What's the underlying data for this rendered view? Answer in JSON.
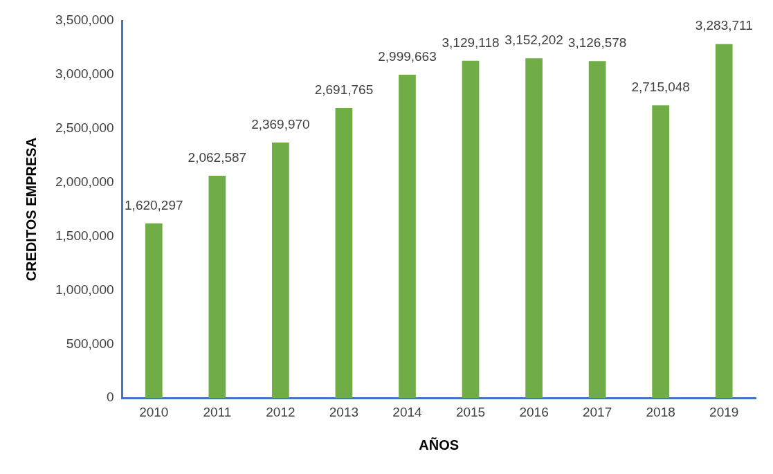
{
  "chart_data": {
    "type": "bar",
    "xlabel": "AÑOS",
    "ylabel": "CREDITOS EMPRESA",
    "categories": [
      "2010",
      "2011",
      "2012",
      "2013",
      "2014",
      "2015",
      "2016",
      "2017",
      "2018",
      "2019"
    ],
    "values": [
      1620297,
      2062587,
      2369970,
      2691765,
      2999663,
      3129118,
      3152202,
      3126578,
      2715048,
      3283711
    ],
    "color": "#70ad47",
    "ylim": [
      0,
      3500000
    ],
    "yticks": [
      {
        "value": 0,
        "label": "0"
      },
      {
        "value": 500000,
        "label": "500,000"
      },
      {
        "value": 1000000,
        "label": "1,000,000"
      },
      {
        "value": 1500000,
        "label": "1,500,000"
      },
      {
        "value": 2000000,
        "label": "2,000,000"
      },
      {
        "value": 2500000,
        "label": "2,500,000"
      },
      {
        "value": 3000000,
        "label": "3,000,000"
      },
      {
        "value": 3500000,
        "label": "3,500,000"
      }
    ],
    "grid": false,
    "legend": false,
    "value_labels": [
      "1,620,297",
      "2,062,587",
      "2,369,970",
      "2,691,765",
      "2,999,663",
      "3,129,118",
      "3,152,202",
      "3,126,578",
      "2,715,048",
      "3,283,711"
    ]
  }
}
